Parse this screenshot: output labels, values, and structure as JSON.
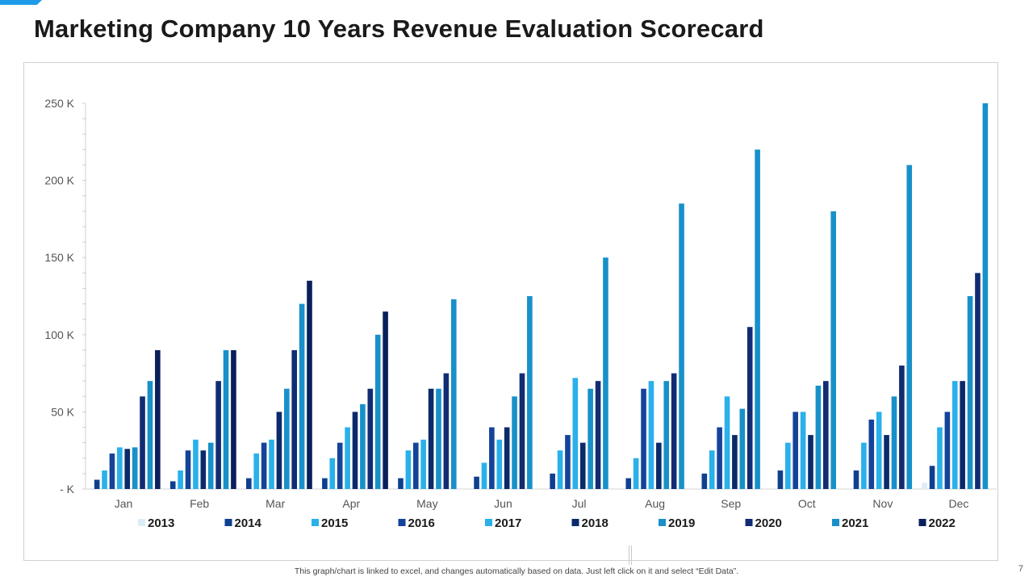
{
  "slide": {
    "title": "Marketing Company 10 Years Revenue Evaluation Scorecard",
    "footnote": "This graph/chart is linked to excel,  and changes automatically based on data. Just left click on it and select “Edit Data”.",
    "page_number": "7",
    "accent_color": "#1e9be8"
  },
  "chart_data": {
    "type": "bar",
    "title": "",
    "xlabel": "",
    "ylabel": "",
    "ylim": [
      0,
      250000
    ],
    "yticks": [
      0,
      50000,
      100000,
      150000,
      200000,
      250000
    ],
    "ytick_labels": [
      "- K",
      "50 K",
      "100 K",
      "150 K",
      "200 K",
      "250 K"
    ],
    "grid": false,
    "legend_position": "bottom",
    "categories": [
      "Jan",
      "Feb",
      "Mar",
      "Apr",
      "May",
      "Jun",
      "Jul",
      "Aug",
      "Sep",
      "Oct",
      "Nov",
      "Dec"
    ],
    "series": [
      {
        "name": "2013",
        "color": "#dcecf7",
        "values": [
          0,
          0,
          0,
          0,
          0,
          0,
          0,
          0,
          0,
          0,
          0,
          4000
        ]
      },
      {
        "name": "2014",
        "color": "#0f3f8f",
        "values": [
          6000,
          5000,
          7000,
          7000,
          7000,
          8000,
          10000,
          7000,
          10000,
          12000,
          12000,
          15000
        ]
      },
      {
        "name": "2015",
        "color": "#2ab0ea",
        "values": [
          12000,
          12000,
          23000,
          20000,
          25000,
          17000,
          25000,
          20000,
          25000,
          30000,
          30000,
          40000
        ]
      },
      {
        "name": "2016",
        "color": "#14439a",
        "values": [
          23000,
          25000,
          30000,
          30000,
          30000,
          40000,
          35000,
          65000,
          40000,
          50000,
          45000,
          50000
        ]
      },
      {
        "name": "2017",
        "color": "#2ab0ea",
        "values": [
          27000,
          32000,
          32000,
          40000,
          32000,
          32000,
          72000,
          70000,
          60000,
          50000,
          50000,
          70000
        ]
      },
      {
        "name": "2018",
        "color": "#0b2a6b",
        "values": [
          26000,
          25000,
          50000,
          50000,
          65000,
          40000,
          30000,
          30000,
          35000,
          35000,
          35000,
          70000
        ]
      },
      {
        "name": "2019",
        "color": "#1890c9",
        "values": [
          27000,
          30000,
          65000,
          55000,
          65000,
          60000,
          65000,
          70000,
          52000,
          67000,
          60000,
          125000
        ]
      },
      {
        "name": "2020",
        "color": "#112c73",
        "values": [
          60000,
          70000,
          90000,
          65000,
          75000,
          75000,
          70000,
          75000,
          105000,
          70000,
          80000,
          140000
        ]
      },
      {
        "name": "2021",
        "color": "#1890c9",
        "values": [
          70000,
          90000,
          120000,
          100000,
          123000,
          125000,
          150000,
          185000,
          220000,
          180000,
          210000,
          250000
        ]
      },
      {
        "name": "2022",
        "color": "#0a1f5c",
        "values": [
          90000,
          90000,
          135000,
          115000,
          0,
          0,
          0,
          0,
          0,
          0,
          0,
          0
        ]
      }
    ]
  }
}
